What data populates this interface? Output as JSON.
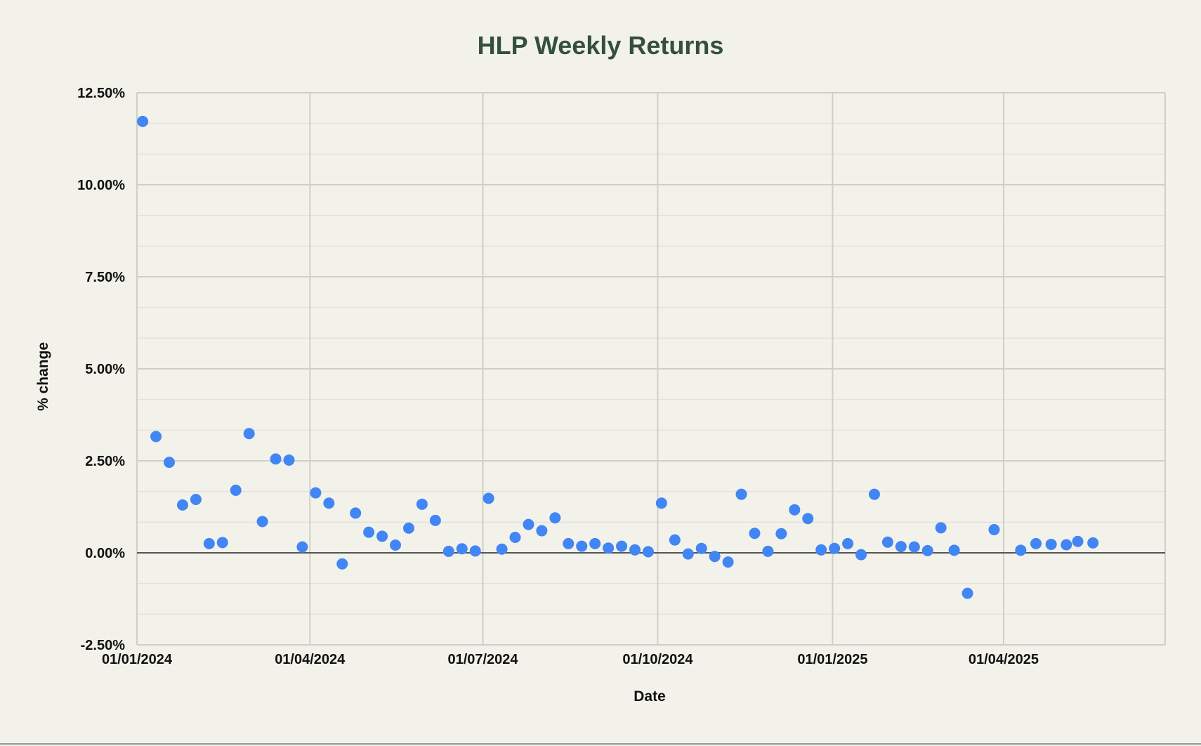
{
  "chart_data": {
    "type": "scatter",
    "title": "HLP Weekly Returns",
    "xlabel": "Date",
    "ylabel": "% change",
    "x_axis": {
      "scale": "date",
      "range": [
        "2024-01-01",
        "2025-06-25"
      ],
      "ticks": [
        "2024-01-01",
        "2024-04-01",
        "2024-07-01",
        "2024-10-01",
        "2025-01-01",
        "2025-04-01"
      ],
      "tick_labels": [
        "01/01/2024",
        "01/04/2024",
        "01/07/2024",
        "01/10/2024",
        "01/01/2025",
        "01/04/2025"
      ]
    },
    "y_axis": {
      "range": [
        -2.5,
        12.5
      ],
      "ticks": [
        -2.5,
        0,
        2.5,
        5,
        7.5,
        10,
        12.5
      ],
      "tick_labels": [
        "-2.50%",
        "0.00%",
        "2.50%",
        "5.00%",
        "7.50%",
        "10.00%",
        "12.50%"
      ],
      "minor_gridlines": true
    },
    "grid": true,
    "legend": "none",
    "marker_color": "#4285f4",
    "points": [
      {
        "x": "2024-01-04",
        "y": 11.72
      },
      {
        "x": "2024-01-11",
        "y": 3.16
      },
      {
        "x": "2024-01-18",
        "y": 2.46
      },
      {
        "x": "2024-01-25",
        "y": 1.3
      },
      {
        "x": "2024-02-01",
        "y": 1.45
      },
      {
        "x": "2024-02-08",
        "y": 0.25
      },
      {
        "x": "2024-02-15",
        "y": 0.28
      },
      {
        "x": "2024-02-22",
        "y": 1.7
      },
      {
        "x": "2024-02-29",
        "y": 3.24
      },
      {
        "x": "2024-03-07",
        "y": 0.85
      },
      {
        "x": "2024-03-14",
        "y": 2.55
      },
      {
        "x": "2024-03-21",
        "y": 2.52
      },
      {
        "x": "2024-03-28",
        "y": 0.16
      },
      {
        "x": "2024-04-04",
        "y": 1.63
      },
      {
        "x": "2024-04-11",
        "y": 1.35
      },
      {
        "x": "2024-04-18",
        "y": -0.3
      },
      {
        "x": "2024-04-25",
        "y": 1.08
      },
      {
        "x": "2024-05-02",
        "y": 0.56
      },
      {
        "x": "2024-05-09",
        "y": 0.45
      },
      {
        "x": "2024-05-16",
        "y": 0.21
      },
      {
        "x": "2024-05-23",
        "y": 0.67
      },
      {
        "x": "2024-05-30",
        "y": 1.32
      },
      {
        "x": "2024-06-06",
        "y": 0.88
      },
      {
        "x": "2024-06-13",
        "y": 0.04
      },
      {
        "x": "2024-06-20",
        "y": 0.11
      },
      {
        "x": "2024-06-27",
        "y": 0.05
      },
      {
        "x": "2024-07-04",
        "y": 1.48
      },
      {
        "x": "2024-07-11",
        "y": 0.1
      },
      {
        "x": "2024-07-18",
        "y": 0.42
      },
      {
        "x": "2024-07-25",
        "y": 0.77
      },
      {
        "x": "2024-08-01",
        "y": 0.6
      },
      {
        "x": "2024-08-08",
        "y": 0.95
      },
      {
        "x": "2024-08-15",
        "y": 0.25
      },
      {
        "x": "2024-08-22",
        "y": 0.18
      },
      {
        "x": "2024-08-29",
        "y": 0.25
      },
      {
        "x": "2024-09-05",
        "y": 0.13
      },
      {
        "x": "2024-09-12",
        "y": 0.18
      },
      {
        "x": "2024-09-19",
        "y": 0.08
      },
      {
        "x": "2024-09-26",
        "y": 0.03
      },
      {
        "x": "2024-10-03",
        "y": 1.35
      },
      {
        "x": "2024-10-10",
        "y": 0.35
      },
      {
        "x": "2024-10-17",
        "y": -0.03
      },
      {
        "x": "2024-10-24",
        "y": 0.12
      },
      {
        "x": "2024-10-31",
        "y": -0.1
      },
      {
        "x": "2024-11-07",
        "y": -0.25
      },
      {
        "x": "2024-11-14",
        "y": 1.59
      },
      {
        "x": "2024-11-21",
        "y": 0.53
      },
      {
        "x": "2024-11-28",
        "y": 0.04
      },
      {
        "x": "2024-12-05",
        "y": 0.52
      },
      {
        "x": "2024-12-12",
        "y": 1.17
      },
      {
        "x": "2024-12-19",
        "y": 0.93
      },
      {
        "x": "2024-12-26",
        "y": 0.08
      },
      {
        "x": "2025-01-02",
        "y": 0.12
      },
      {
        "x": "2025-01-09",
        "y": 0.25
      },
      {
        "x": "2025-01-16",
        "y": -0.05
      },
      {
        "x": "2025-01-23",
        "y": 1.59
      },
      {
        "x": "2025-01-30",
        "y": 0.29
      },
      {
        "x": "2025-02-06",
        "y": 0.17
      },
      {
        "x": "2025-02-13",
        "y": 0.16
      },
      {
        "x": "2025-02-20",
        "y": 0.06
      },
      {
        "x": "2025-02-27",
        "y": 0.68
      },
      {
        "x": "2025-03-06",
        "y": 0.07
      },
      {
        "x": "2025-03-13",
        "y": -1.1
      },
      {
        "x": "2025-03-27",
        "y": 0.63
      },
      {
        "x": "2025-04-10",
        "y": 0.07
      },
      {
        "x": "2025-04-18",
        "y": 0.25
      },
      {
        "x": "2025-04-26",
        "y": 0.23
      },
      {
        "x": "2025-05-04",
        "y": 0.22
      },
      {
        "x": "2025-05-10",
        "y": 0.31
      },
      {
        "x": "2025-05-18",
        "y": 0.27
      }
    ]
  }
}
